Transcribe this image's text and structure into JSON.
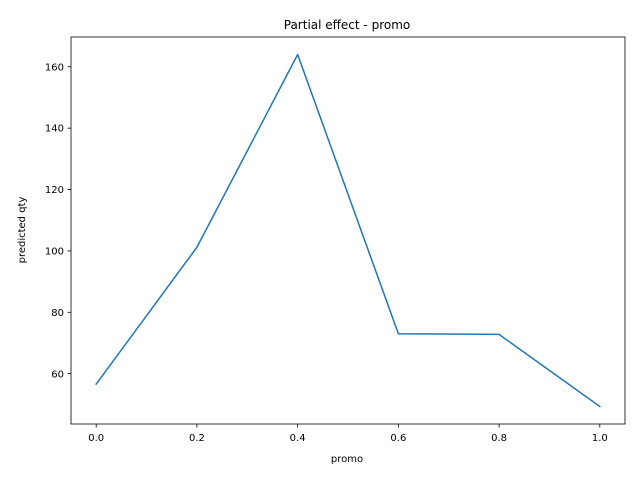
{
  "chart_data": {
    "type": "line",
    "title": "Partial effect - promo",
    "xlabel": "promo",
    "ylabel": "predicted qty",
    "x": [
      0.0,
      0.2,
      0.4,
      0.6,
      0.8,
      1.0
    ],
    "series": [
      {
        "values": [
          56.6,
          101.2,
          164.0,
          73.0,
          72.8,
          49.3
        ],
        "color": "#1f77b4"
      }
    ],
    "xlim": [
      -0.05,
      1.05
    ],
    "ylim": [
      43.6,
      169.7
    ],
    "xticks": [
      0.0,
      0.2,
      0.4,
      0.6,
      0.8,
      1.0
    ],
    "xtick_labels": [
      "0.0",
      "0.2",
      "0.4",
      "0.6",
      "0.8",
      "1.0"
    ],
    "yticks": [
      60,
      80,
      100,
      120,
      140,
      160
    ],
    "ytick_labels": [
      "60",
      "80",
      "100",
      "120",
      "140",
      "160"
    ],
    "grid": false,
    "legend": "none"
  }
}
